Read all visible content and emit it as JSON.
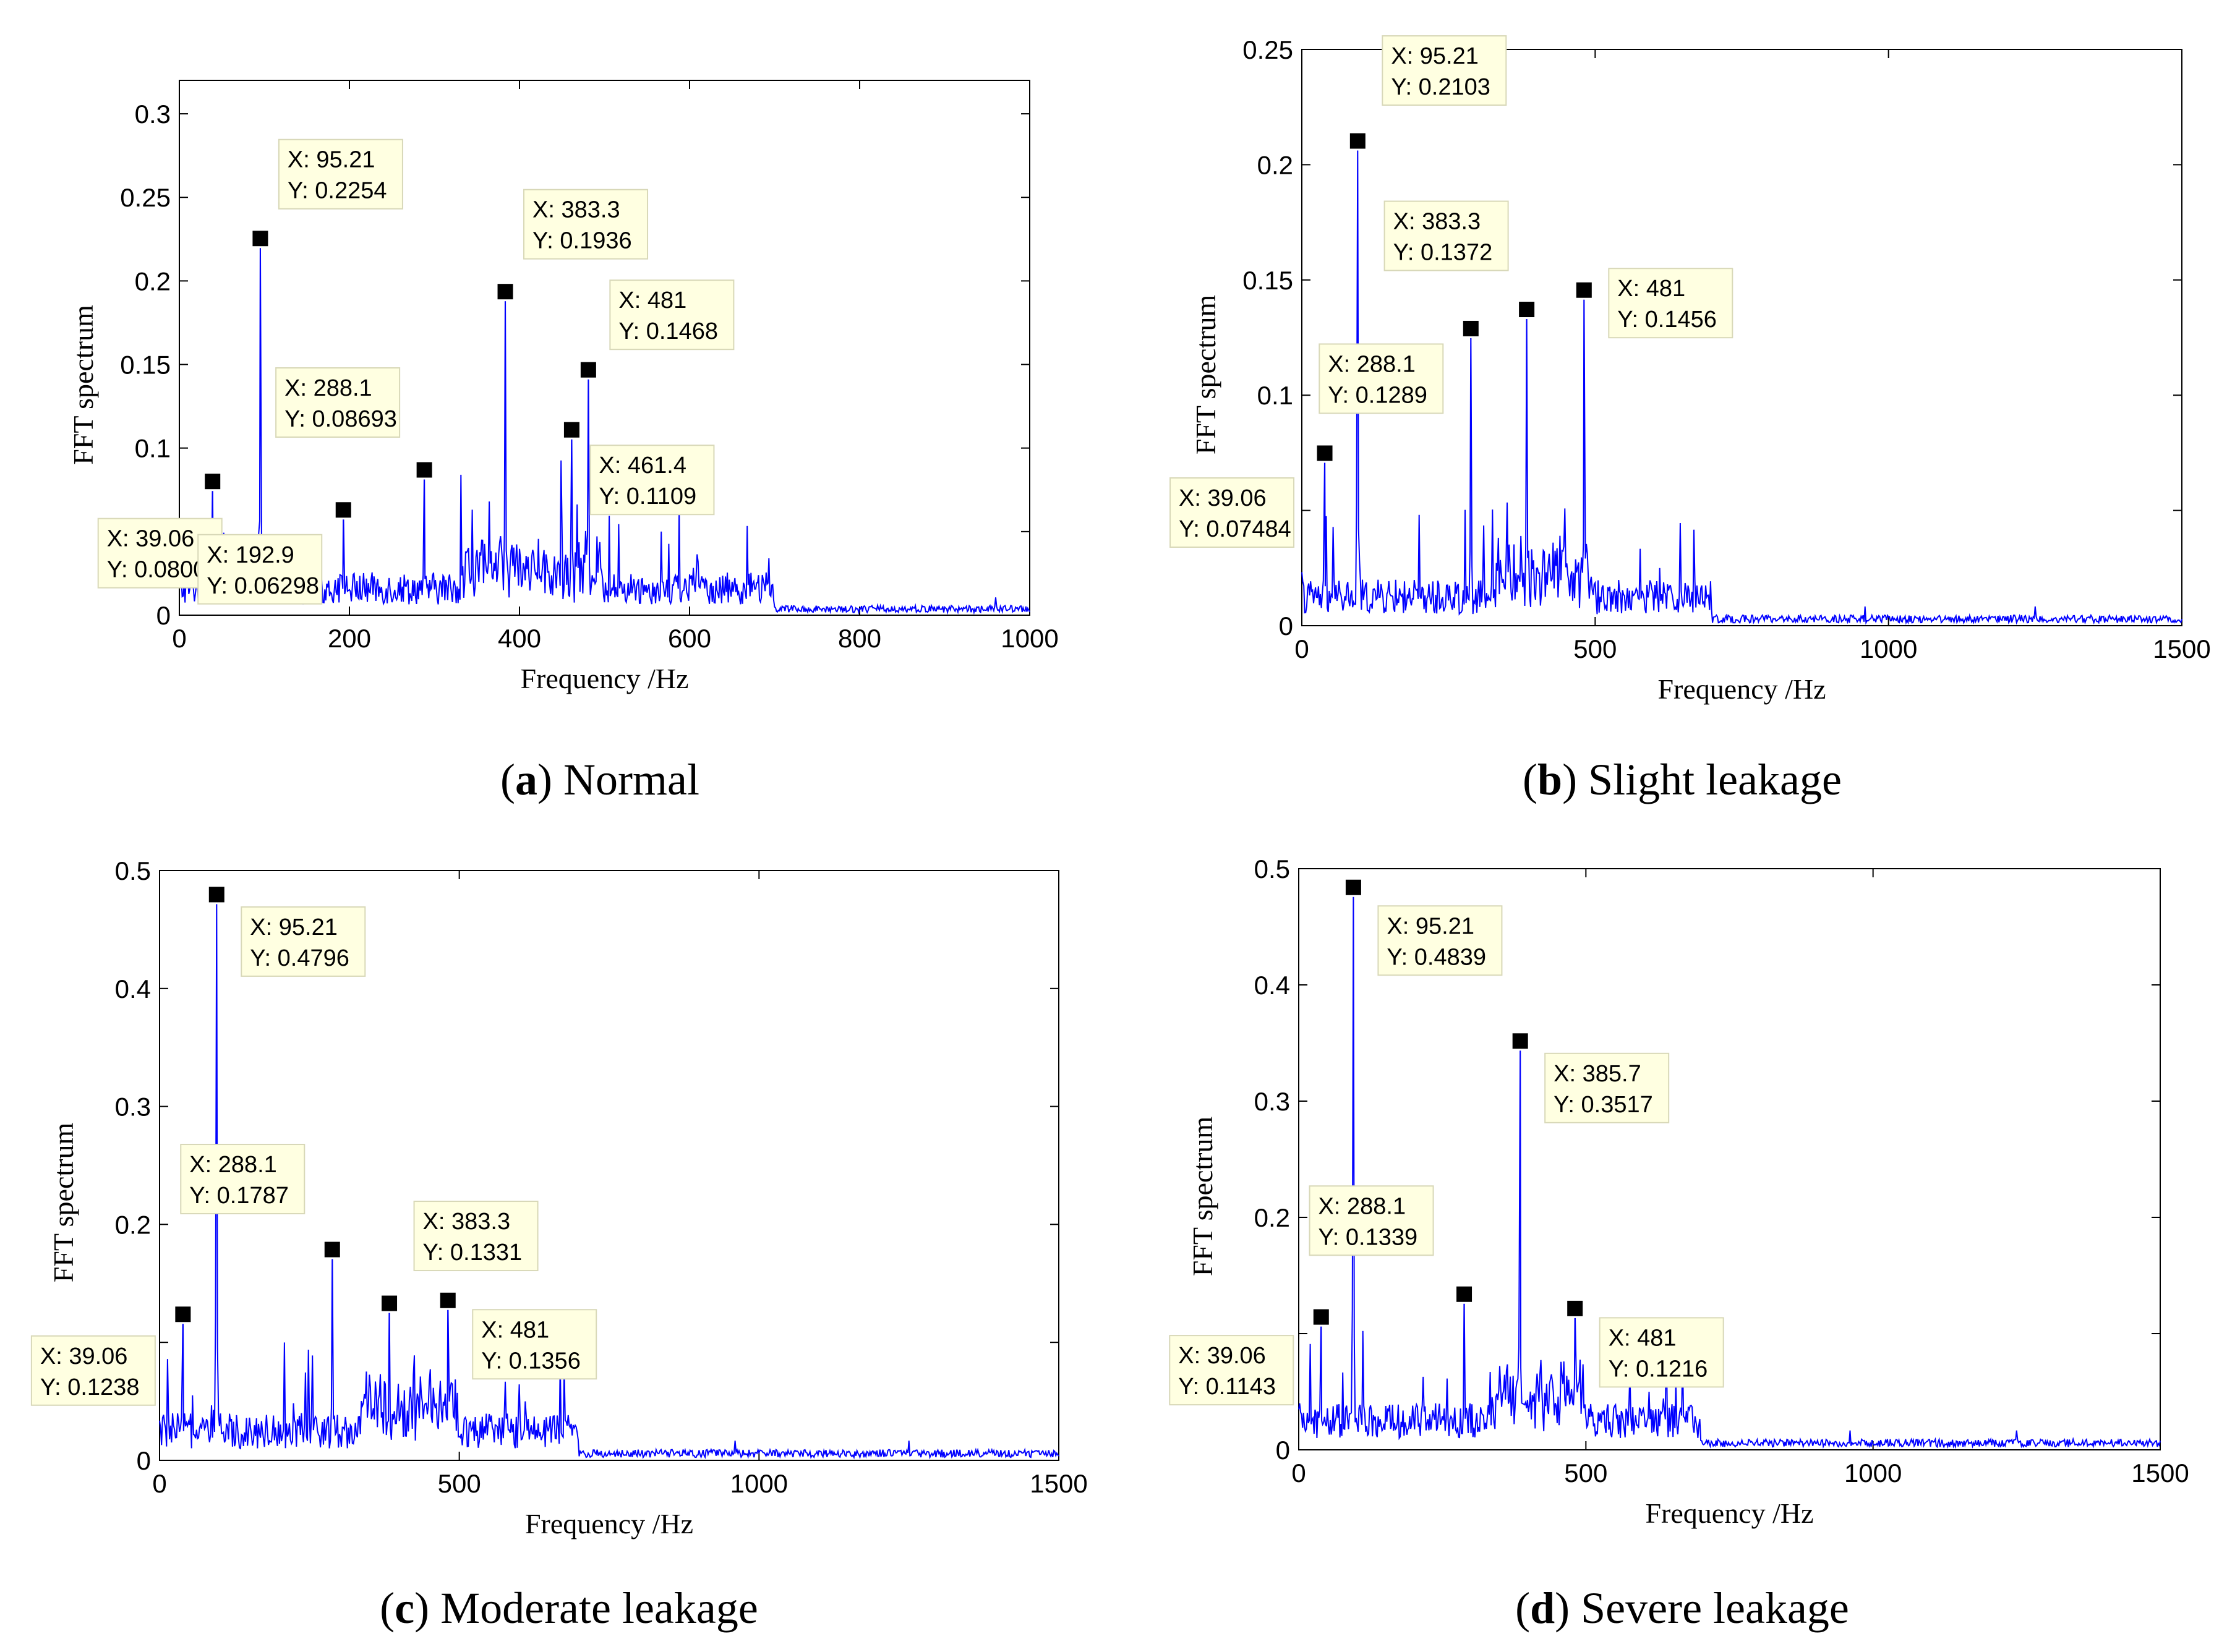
{
  "colors": {
    "line": "#0000ff",
    "marker": "#000000",
    "tip_bg": "#ffffe1",
    "tip_border": "#d8d8b8"
  },
  "chart_data": [
    {
      "id": "a",
      "type": "line",
      "caption": {
        "letter": "a",
        "text": "Normal"
      },
      "xlabel": "Frequency /Hz",
      "ylabel": "FFT  spectrum",
      "xlim": [
        0,
        1000
      ],
      "ylim": [
        0,
        0.32
      ],
      "xticks": [
        0,
        200,
        400,
        600,
        800,
        1000
      ],
      "xtick_labels": [
        "0",
        "200",
        "400",
        "600",
        "800",
        "1000"
      ],
      "yticks": [
        0,
        0.05,
        0.1,
        0.15,
        0.2,
        0.25,
        0.3
      ],
      "ytick_labels": [
        "0",
        "0.05",
        "0.1",
        "0.15",
        "0.2",
        "0.25",
        "0.3"
      ],
      "peaks": [
        {
          "x": 39.06,
          "y": 0.08002
        },
        {
          "x": 95.21,
          "y": 0.2254
        },
        {
          "x": 192.9,
          "y": 0.06298
        },
        {
          "x": 288.1,
          "y": 0.08693
        },
        {
          "x": 383.3,
          "y": 0.1936
        },
        {
          "x": 461.4,
          "y": 0.1109
        },
        {
          "x": 481,
          "y": 0.1468
        }
      ],
      "datatips": [
        {
          "x": "X: 39.06",
          "y": "Y: 0.08002"
        },
        {
          "x": "X: 95.21",
          "y": "Y: 0.2254"
        },
        {
          "x": "X: 192.9",
          "y": "Y: 0.06298"
        },
        {
          "x": "X: 288.1",
          "y": "Y: 0.08693"
        },
        {
          "x": "X: 383.3",
          "y": "Y: 0.1936"
        },
        {
          "x": "X: 461.4",
          "y": "Y: 0.1109"
        },
        {
          "x": "X: 481",
          "y": "Y: 0.1468"
        }
      ]
    },
    {
      "id": "b",
      "type": "line",
      "caption": {
        "letter": "b",
        "text": "Slight leakage"
      },
      "xlabel": "Frequency  /Hz",
      "ylabel": "FFT  spectrum",
      "xlim": [
        0,
        1500
      ],
      "ylim": [
        0,
        0.25
      ],
      "xticks": [
        0,
        500,
        1000,
        1500
      ],
      "xtick_labels": [
        "0",
        "500",
        "1000",
        "1500"
      ],
      "yticks": [
        0,
        0.05,
        0.1,
        0.15,
        0.2,
        0.25
      ],
      "ytick_labels": [
        "0",
        "",
        "0.1",
        "0.15",
        "0.2",
        "0.25"
      ],
      "peaks": [
        {
          "x": 39.06,
          "y": 0.07484
        },
        {
          "x": 95.21,
          "y": 0.2103
        },
        {
          "x": 288.1,
          "y": 0.1289
        },
        {
          "x": 383.3,
          "y": 0.1372
        },
        {
          "x": 481,
          "y": 0.1456
        }
      ],
      "datatips": [
        {
          "x": "X: 39.06",
          "y": "Y: 0.07484"
        },
        {
          "x": "X: 95.21",
          "y": "Y: 0.2103"
        },
        {
          "x": "X: 288.1",
          "y": "Y: 0.1289"
        },
        {
          "x": "X: 383.3",
          "y": "Y: 0.1372"
        },
        {
          "x": "X: 481",
          "y": "Y: 0.1456"
        }
      ]
    },
    {
      "id": "c",
      "type": "line",
      "caption": {
        "letter": "c",
        "text": "Moderate leakage"
      },
      "xlabel": "Frequency  /Hz",
      "ylabel": "FFT  spectrum",
      "xlim": [
        0,
        1500
      ],
      "ylim": [
        0,
        0.5
      ],
      "xticks": [
        0,
        500,
        1000,
        1500
      ],
      "xtick_labels": [
        "0",
        "500",
        "1000",
        "1500"
      ],
      "yticks": [
        0,
        0.1,
        0.2,
        0.3,
        0.4,
        0.5
      ],
      "ytick_labels": [
        "0",
        "",
        "0.2",
        "0.3",
        "0.4",
        "0.5"
      ],
      "peaks": [
        {
          "x": 39.06,
          "y": 0.1238
        },
        {
          "x": 95.21,
          "y": 0.4796
        },
        {
          "x": 288.1,
          "y": 0.1787
        },
        {
          "x": 383.3,
          "y": 0.1331
        },
        {
          "x": 481,
          "y": 0.1356
        }
      ],
      "datatips": [
        {
          "x": "X: 39.06",
          "y": "Y: 0.1238"
        },
        {
          "x": "X: 95.21",
          "y": "Y: 0.4796"
        },
        {
          "x": "X: 288.1",
          "y": "Y: 0.1787"
        },
        {
          "x": "X: 383.3",
          "y": "Y: 0.1331"
        },
        {
          "x": "X: 481",
          "y": "Y: 0.1356"
        }
      ]
    },
    {
      "id": "d",
      "type": "line",
      "caption": {
        "letter": "d",
        "text": "Severe leakage"
      },
      "xlabel": "Frequency  /Hz",
      "ylabel": "FFT  spectrum",
      "xlim": [
        0,
        1500
      ],
      "ylim": [
        0,
        0.5
      ],
      "xticks": [
        0,
        500,
        1000,
        1500
      ],
      "xtick_labels": [
        "0",
        "500",
        "1000",
        "1500"
      ],
      "yticks": [
        0,
        0.1,
        0.2,
        0.3,
        0.4,
        0.5
      ],
      "ytick_labels": [
        "0",
        "",
        "0.2",
        "0.3",
        "0.4",
        "0.5"
      ],
      "peaks": [
        {
          "x": 39.06,
          "y": 0.1143
        },
        {
          "x": 95.21,
          "y": 0.4839
        },
        {
          "x": 288.1,
          "y": 0.1339
        },
        {
          "x": 385.7,
          "y": 0.3517
        },
        {
          "x": 481,
          "y": 0.1216
        }
      ],
      "datatips": [
        {
          "x": "X: 39.06",
          "y": "Y: 0.1143"
        },
        {
          "x": "X: 95.21",
          "y": "Y: 0.4839"
        },
        {
          "x": "X: 288.1",
          "y": "Y: 0.1339"
        },
        {
          "x": "X: 385.7",
          "y": "Y: 0.3517"
        },
        {
          "x": "X: 481",
          "y": "Y: 0.1216"
        }
      ]
    }
  ]
}
